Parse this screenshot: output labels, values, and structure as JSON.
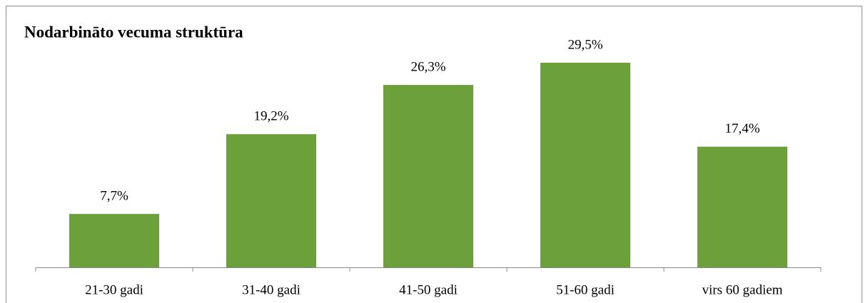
{
  "chart_data": {
    "type": "bar",
    "title": "Nodarbināto  vecuma  struktūra",
    "categories": [
      "21-30 gadi",
      "31-40 gadi",
      "41-50 gadi",
      "51-60 gadi",
      "virs 60 gadiem"
    ],
    "values": [
      7.7,
      19.2,
      26.3,
      29.5,
      17.4
    ],
    "value_labels": [
      "7,7%",
      "19,2%",
      "26,3%",
      "29,5%",
      "17,4%"
    ],
    "color": "#6ba03a",
    "ylim": [
      0,
      35
    ]
  }
}
